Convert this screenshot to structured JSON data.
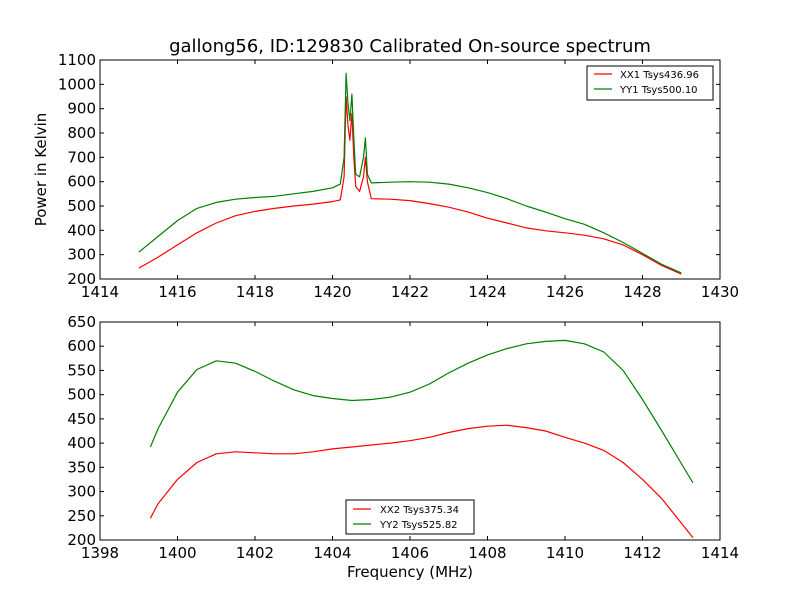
{
  "title": "gallong56, ID:129830 Calibrated On-source spectrum",
  "chart_data": [
    {
      "type": "line",
      "ylabel": "Power in Kelvin",
      "xlabel": "",
      "xlim": [
        1414,
        1430
      ],
      "ylim": [
        200,
        1100
      ],
      "xticks": [
        1414,
        1416,
        1418,
        1420,
        1422,
        1424,
        1426,
        1428,
        1430
      ],
      "yticks": [
        200,
        300,
        400,
        500,
        600,
        700,
        800,
        900,
        1000,
        1100
      ],
      "legend": "top-right",
      "series": [
        {
          "name": "XX1 Tsys436.96",
          "color": "#ff0000",
          "x": [
            1415.0,
            1415.5,
            1416.0,
            1416.5,
            1417.0,
            1417.5,
            1418.0,
            1418.5,
            1419.0,
            1419.5,
            1420.0,
            1420.2,
            1420.3,
            1420.35,
            1420.4,
            1420.45,
            1420.5,
            1420.55,
            1420.6,
            1420.7,
            1420.8,
            1420.85,
            1420.9,
            1421.0,
            1421.5,
            1422.0,
            1422.5,
            1423.0,
            1423.5,
            1424.0,
            1424.5,
            1425.0,
            1425.5,
            1426.0,
            1426.5,
            1427.0,
            1427.5,
            1428.0,
            1428.5,
            1429.0
          ],
          "y": [
            245,
            290,
            340,
            390,
            430,
            460,
            478,
            490,
            500,
            508,
            518,
            525,
            620,
            950,
            830,
            770,
            880,
            700,
            580,
            560,
            620,
            700,
            600,
            530,
            528,
            522,
            510,
            495,
            475,
            450,
            430,
            410,
            398,
            390,
            380,
            365,
            340,
            300,
            255,
            220
          ]
        },
        {
          "name": "YY1 Tsys500.10",
          "color": "#008000",
          "x": [
            1415.0,
            1415.5,
            1416.0,
            1416.5,
            1417.0,
            1417.5,
            1418.0,
            1418.5,
            1419.0,
            1419.5,
            1420.0,
            1420.2,
            1420.3,
            1420.35,
            1420.4,
            1420.45,
            1420.5,
            1420.55,
            1420.6,
            1420.7,
            1420.8,
            1420.85,
            1420.9,
            1421.0,
            1421.5,
            1422.0,
            1422.5,
            1423.0,
            1423.5,
            1424.0,
            1424.5,
            1425.0,
            1425.5,
            1426.0,
            1426.5,
            1427.0,
            1427.5,
            1428.0,
            1428.5,
            1429.0
          ],
          "y": [
            310,
            375,
            440,
            490,
            515,
            528,
            535,
            540,
            550,
            560,
            575,
            590,
            700,
            1045,
            920,
            850,
            960,
            780,
            630,
            620,
            700,
            780,
            630,
            595,
            598,
            600,
            598,
            590,
            575,
            555,
            530,
            500,
            475,
            448,
            425,
            390,
            350,
            305,
            260,
            225
          ]
        }
      ]
    },
    {
      "type": "line",
      "ylabel": "",
      "xlabel": "Frequency (MHz)",
      "xlim": [
        1398,
        1414
      ],
      "ylim": [
        200,
        650
      ],
      "xticks": [
        1398,
        1400,
        1402,
        1404,
        1406,
        1408,
        1410,
        1412,
        1414
      ],
      "yticks": [
        200,
        250,
        300,
        350,
        400,
        450,
        500,
        550,
        600,
        650
      ],
      "legend": "lower-center",
      "series": [
        {
          "name": "XX2 Tsys375.34",
          "color": "#ff0000",
          "x": [
            1399.3,
            1399.5,
            1400.0,
            1400.5,
            1401.0,
            1401.5,
            1402.0,
            1402.5,
            1403.0,
            1403.5,
            1404.0,
            1404.5,
            1405.0,
            1405.5,
            1406.0,
            1406.5,
            1407.0,
            1407.5,
            1408.0,
            1408.5,
            1409.0,
            1409.5,
            1410.0,
            1410.5,
            1411.0,
            1411.5,
            1412.0,
            1412.5,
            1413.0,
            1413.3
          ],
          "y": [
            245,
            275,
            325,
            360,
            378,
            382,
            380,
            378,
            378,
            382,
            388,
            392,
            396,
            400,
            405,
            412,
            422,
            430,
            435,
            437,
            432,
            425,
            412,
            400,
            385,
            360,
            325,
            285,
            235,
            205
          ]
        },
        {
          "name": "YY2 Tsys525.82",
          "color": "#008000",
          "x": [
            1399.3,
            1399.5,
            1400.0,
            1400.5,
            1401.0,
            1401.5,
            1402.0,
            1402.5,
            1403.0,
            1403.5,
            1404.0,
            1404.5,
            1405.0,
            1405.5,
            1406.0,
            1406.5,
            1407.0,
            1407.5,
            1408.0,
            1408.5,
            1409.0,
            1409.5,
            1410.0,
            1410.5,
            1411.0,
            1411.5,
            1412.0,
            1412.5,
            1413.0,
            1413.3
          ],
          "y": [
            392,
            430,
            505,
            552,
            570,
            565,
            548,
            528,
            510,
            498,
            492,
            488,
            490,
            495,
            505,
            522,
            545,
            565,
            582,
            595,
            605,
            610,
            612,
            605,
            588,
            550,
            490,
            425,
            358,
            318
          ]
        }
      ]
    }
  ]
}
